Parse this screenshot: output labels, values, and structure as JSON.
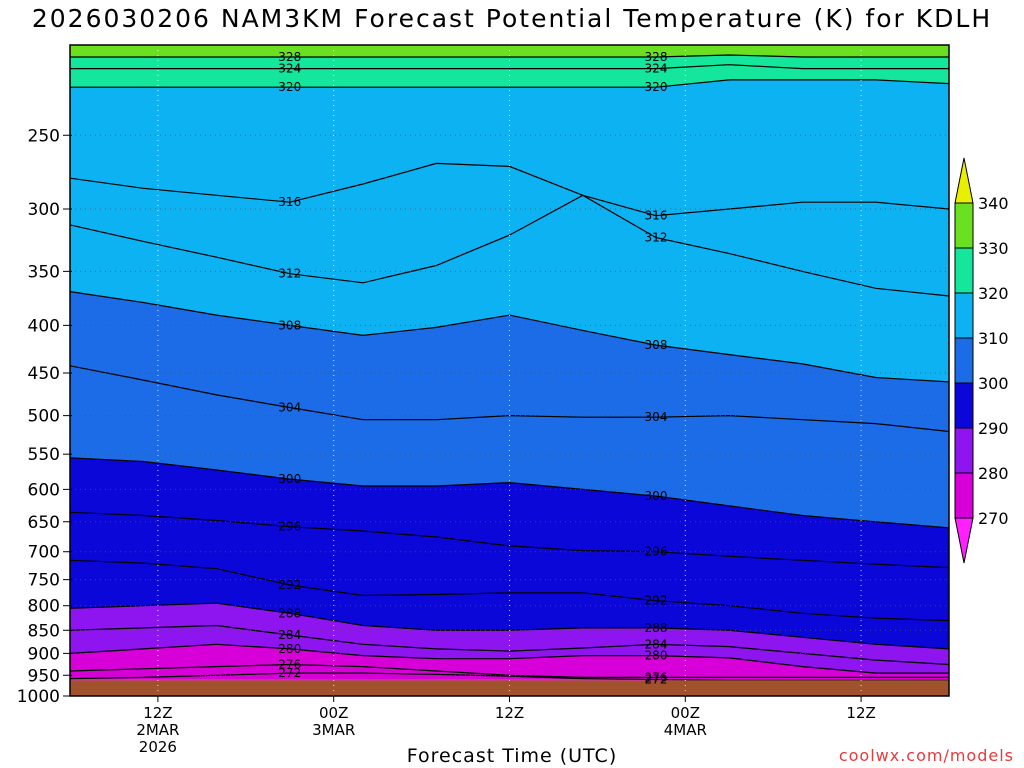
{
  "title": "2026030206 NAM3KM Forecast Potential Temperature (K) for KDLH",
  "credit": "coolwx.com/models",
  "chart_data": {
    "type": "area",
    "title": "2026030206 NAM3KM Forecast Potential Temperature (K) for KDLH",
    "xlabel": "Forecast Time (UTC)",
    "ylabel": "",
    "x_ticks": [
      {
        "hour": 6,
        "lines": [
          "12Z",
          "2MAR",
          "2026"
        ]
      },
      {
        "hour": 18,
        "lines": [
          "00Z",
          "3MAR"
        ]
      },
      {
        "hour": 30,
        "lines": [
          "12Z"
        ]
      },
      {
        "hour": 42,
        "lines": [
          "00Z",
          "4MAR"
        ]
      },
      {
        "hour": 54,
        "lines": [
          "12Z"
        ]
      }
    ],
    "xlim": [
      0,
      60
    ],
    "y_ticks": [
      250,
      300,
      350,
      400,
      450,
      500,
      550,
      600,
      650,
      700,
      750,
      800,
      850,
      900,
      950,
      1000
    ],
    "ylim_hpa": [
      200,
      1000
    ],
    "y_scale": "log-pressure (inverted)",
    "colorbar": {
      "labels": [
        340,
        330,
        320,
        310,
        300,
        290,
        280,
        270
      ],
      "levels": [
        260,
        270,
        280,
        290,
        300,
        310,
        320,
        330,
        340,
        350
      ],
      "colors": [
        "#ff1fff",
        "#d800d8",
        "#8e14f0",
        "#0b07d9",
        "#1b6ce6",
        "#0cb2f2",
        "#14e69c",
        "#6be020",
        "#e8f000"
      ]
    },
    "series": [
      {
        "value": 272,
        "p": [
          958,
          955,
          950,
          945,
          945,
          948,
          952,
          958,
          960,
          962,
          962,
          962,
          962
        ]
      },
      {
        "value": 276,
        "p": [
          940,
          935,
          930,
          925,
          930,
          940,
          950,
          955,
          955,
          955,
          955,
          955,
          955
        ]
      },
      {
        "value": 280,
        "p": [
          900,
          890,
          880,
          890,
          905,
          912,
          912,
          905,
          905,
          910,
          930,
          945,
          945
        ]
      },
      {
        "value": 284,
        "p": [
          850,
          845,
          840,
          860,
          880,
          890,
          895,
          888,
          880,
          885,
          900,
          915,
          925
        ]
      },
      {
        "value": 288,
        "p": [
          805,
          800,
          795,
          815,
          840,
          850,
          850,
          845,
          845,
          850,
          865,
          880,
          890
        ]
      },
      {
        "value": 292,
        "p": [
          715,
          720,
          730,
          760,
          780,
          778,
          775,
          775,
          790,
          800,
          815,
          825,
          830
        ]
      },
      {
        "value": 296,
        "p": [
          635,
          640,
          648,
          658,
          665,
          675,
          690,
          698,
          700,
          708,
          715,
          722,
          728
        ]
      },
      {
        "value": 300,
        "p": [
          555,
          560,
          572,
          585,
          595,
          595,
          590,
          600,
          610,
          625,
          640,
          650,
          660
        ]
      },
      {
        "value": 304,
        "p": [
          442,
          458,
          475,
          490,
          505,
          505,
          500,
          502,
          502,
          500,
          505,
          510,
          520
        ]
      },
      {
        "value": 308,
        "p": [
          368,
          378,
          390,
          400,
          410,
          402,
          390,
          405,
          420,
          430,
          440,
          455,
          460
        ]
      },
      {
        "value": 312,
        "p": [
          312,
          325,
          338,
          352,
          360,
          345,
          320,
          290,
          322,
          335,
          350,
          365,
          372
        ]
      },
      {
        "value": 316,
        "p": [
          278,
          285,
          290,
          295,
          282,
          268,
          270,
          290,
          305,
          300,
          295,
          295,
          300
        ]
      },
      {
        "value": 320,
        "p": [
          222,
          222,
          222,
          222,
          222,
          222,
          222,
          222,
          222,
          218,
          218,
          218,
          220
        ]
      },
      {
        "value": 324,
        "p": [
          212,
          212,
          212,
          212,
          212,
          212,
          212,
          212,
          212,
          210,
          212,
          212,
          212
        ]
      },
      {
        "value": 328,
        "p": [
          206,
          206,
          206,
          206,
          206,
          206,
          206,
          206,
          206,
          205,
          206,
          206,
          206
        ]
      }
    ],
    "series_times_hours": [
      0,
      5,
      10,
      15,
      20,
      25,
      30,
      35,
      40,
      45,
      50,
      55,
      60
    ],
    "surface_hpa": 962,
    "grid": true,
    "legend": "right"
  }
}
